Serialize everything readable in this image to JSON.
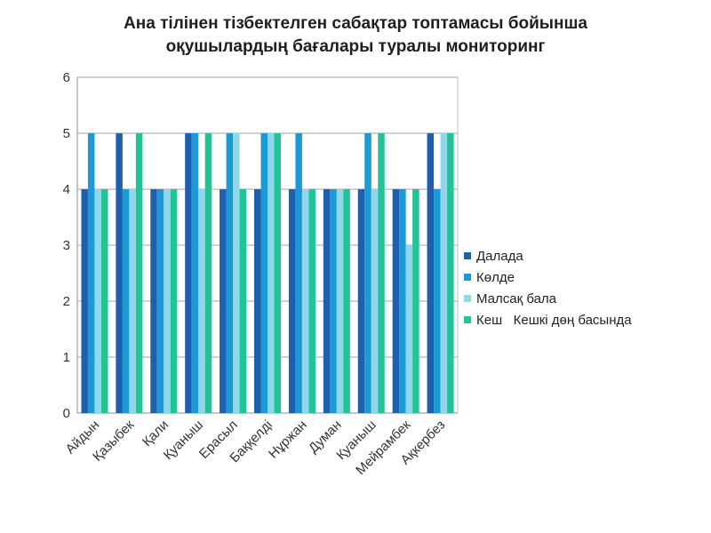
{
  "chart_data": {
    "type": "bar",
    "title": "Ана тілінен тізбектелген сабақтар топтамасы бойынша оқушылардың бағалары туралы мониторинг",
    "title_lines": [
      "Ана тілінен тізбектелген сабақтар топтамасы бойынша",
      "оқушылардың бағалары туралы мониторинг"
    ],
    "xlabel": "",
    "ylabel": "",
    "ylim": [
      0,
      6
    ],
    "yticks": [
      "0",
      "1",
      "2",
      "3",
      "4",
      "5",
      "6"
    ],
    "grid": true,
    "legend_position": "right",
    "categories": [
      "Айдын",
      "Қазыбек",
      "Қали",
      "Қуаныш",
      "Ерасыл",
      "Баққелді",
      "Нұржан",
      "Думан",
      "Қуаныш",
      "Мейрамбек",
      "Ақкербез"
    ],
    "series": [
      {
        "name": "Далада",
        "color": "#1f5fb0",
        "values": [
          4,
          5,
          4,
          5,
          4,
          4,
          4,
          4,
          4,
          4,
          5
        ]
      },
      {
        "name": "Көлде",
        "color": "#1b9ad6",
        "values": [
          5,
          4,
          4,
          5,
          5,
          5,
          5,
          4,
          5,
          4,
          4
        ]
      },
      {
        "name": "Малсақ бала",
        "color": "#8fd8ec",
        "values": [
          4,
          4,
          4,
          4,
          5,
          5,
          4,
          4,
          4,
          3,
          5
        ]
      },
      {
        "name": "Кеш   Кешкі дөң басында",
        "color": "#21c495",
        "values": [
          4,
          5,
          4,
          5,
          4,
          5,
          4,
          4,
          5,
          4,
          5
        ]
      }
    ]
  }
}
